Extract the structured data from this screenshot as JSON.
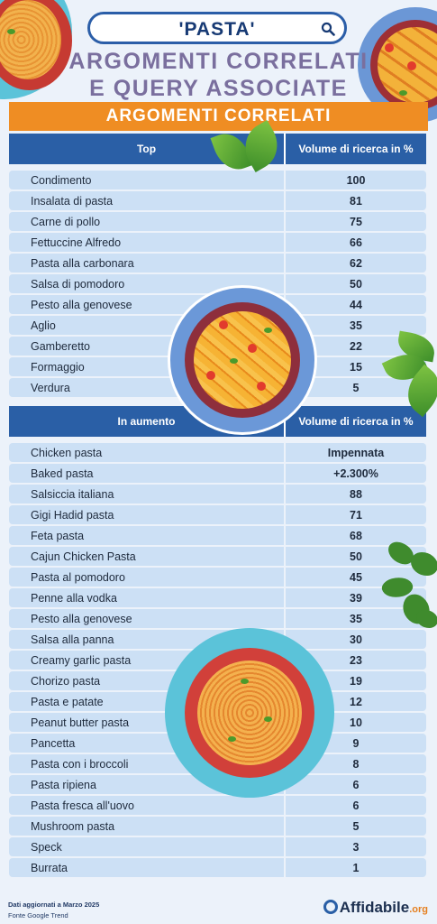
{
  "header": {
    "search_query": "'PASTA'",
    "title_line1": "ARGOMENTI CORRELATI",
    "title_line2": "E QUERY ASSOCIATE",
    "banner": "ARGOMENTI CORRELATI"
  },
  "top_table": {
    "col1": "Top",
    "col2": "Volume di ricerca in %",
    "rows": [
      {
        "label": "Condimento",
        "value": "100"
      },
      {
        "label": "Insalata di pasta",
        "value": "81"
      },
      {
        "label": "Carne di pollo",
        "value": "75"
      },
      {
        "label": "Fettuccine Alfredo",
        "value": "66"
      },
      {
        "label": "Pasta alla carbonara",
        "value": "62"
      },
      {
        "label": "Salsa di pomodoro",
        "value": "50"
      },
      {
        "label": "Pesto alla genovese",
        "value": "44"
      },
      {
        "label": "Aglio",
        "value": "35"
      },
      {
        "label": "Gamberetto",
        "value": "22"
      },
      {
        "label": "Formaggio",
        "value": "15"
      },
      {
        "label": "Verdura",
        "value": "5"
      }
    ]
  },
  "rising_table": {
    "col1": "In aumento",
    "col2": "Volume di ricerca in %",
    "rows": [
      {
        "label": "Chicken pasta",
        "value": "Impennata"
      },
      {
        "label": "Baked pasta",
        "value": "+2.300%"
      },
      {
        "label": "Salsiccia italiana",
        "value": "88"
      },
      {
        "label": "Gigi Hadid pasta",
        "value": "71"
      },
      {
        "label": "Feta pasta",
        "value": "68"
      },
      {
        "label": "Cajun Chicken Pasta",
        "value": "50"
      },
      {
        "label": "Pasta al pomodoro",
        "value": "45"
      },
      {
        "label": "Penne alla vodka",
        "value": "39"
      },
      {
        "label": "Pesto alla genovese",
        "value": "35"
      },
      {
        "label": "Salsa alla panna",
        "value": "30"
      },
      {
        "label": "Creamy garlic pasta",
        "value": "23"
      },
      {
        "label": "Chorizo pasta",
        "value": "19"
      },
      {
        "label": "Pasta e patate",
        "value": "12"
      },
      {
        "label": "Peanut butter pasta",
        "value": "10"
      },
      {
        "label": "Pancetta",
        "value": "9"
      },
      {
        "label": "Pasta con i broccoli",
        "value": "8"
      },
      {
        "label": "Pasta ripiena",
        "value": "6"
      },
      {
        "label": "Pasta fresca all'uovo",
        "value": "6"
      },
      {
        "label": "Mushroom pasta",
        "value": "5"
      },
      {
        "label": "Speck",
        "value": "3"
      },
      {
        "label": "Burrata",
        "value": "1"
      }
    ]
  },
  "footer": {
    "updated": "Dati aggiornati a Marzo 2025",
    "source": "Fonte Google Trend",
    "brand_name": "Affidabile",
    "brand_tld": ".org"
  },
  "colors": {
    "header_blue": "#2a5fa6",
    "banner_orange": "#ef8d23",
    "row_blue": "#cce0f5",
    "title_purple": "#7a6f9e"
  },
  "icons": [
    "search-icon",
    "affidabile-logo-icon"
  ]
}
